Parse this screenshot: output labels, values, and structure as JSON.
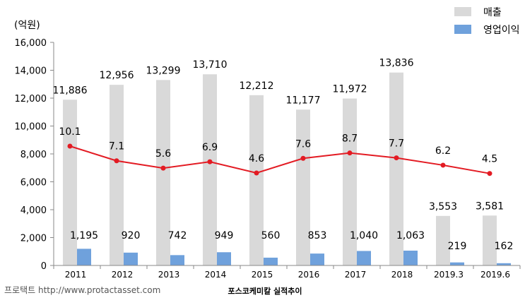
{
  "chart_data": {
    "type": "bar",
    "unit_label": "(억원)",
    "title": "포스코케미칼 실적추이",
    "source": "프로택트 http://www.protactasset.com",
    "categories": [
      "2011",
      "2012",
      "2013",
      "2014",
      "2015",
      "2016",
      "2017",
      "2018",
      "2019.3",
      "2019.6"
    ],
    "ylim": [
      0,
      16000
    ],
    "yticks": [
      0,
      2000,
      4000,
      6000,
      8000,
      10000,
      12000,
      14000,
      16000
    ],
    "ytick_labels": [
      "0",
      "2,000",
      "4,000",
      "6,000",
      "8,000",
      "10,000",
      "12,000",
      "14,000",
      "16,000"
    ],
    "grid": false,
    "legend_position": "top-right",
    "series": [
      {
        "name": "매출",
        "type": "bar",
        "color": "#d9d9d9",
        "values": [
          11886,
          12956,
          13299,
          13710,
          12212,
          11177,
          11972,
          13836,
          3553,
          3581
        ],
        "labels": [
          "11,886",
          "12,956",
          "13,299",
          "13,710",
          "12,212",
          "11,177",
          "11,972",
          "13,836",
          "3,553",
          "3,581"
        ]
      },
      {
        "name": "영업이익",
        "type": "bar",
        "color": "#6fa1dc",
        "values": [
          1195,
          920,
          742,
          949,
          560,
          853,
          1040,
          1063,
          219,
          162
        ],
        "labels": [
          "1,195",
          "920",
          "742",
          "949",
          "560",
          "853",
          "1,040",
          "1,063",
          "219",
          "162"
        ]
      },
      {
        "type": "line",
        "color": "#e31b23",
        "values": [
          10.1,
          7.1,
          5.6,
          6.9,
          4.6,
          7.6,
          8.7,
          7.7,
          6.2,
          4.5
        ],
        "labels": [
          "10.1",
          "7.1",
          "5.6",
          "6.9",
          "4.6",
          "7.6",
          "8.7",
          "7.7",
          "6.2",
          "4.5"
        ]
      }
    ]
  }
}
